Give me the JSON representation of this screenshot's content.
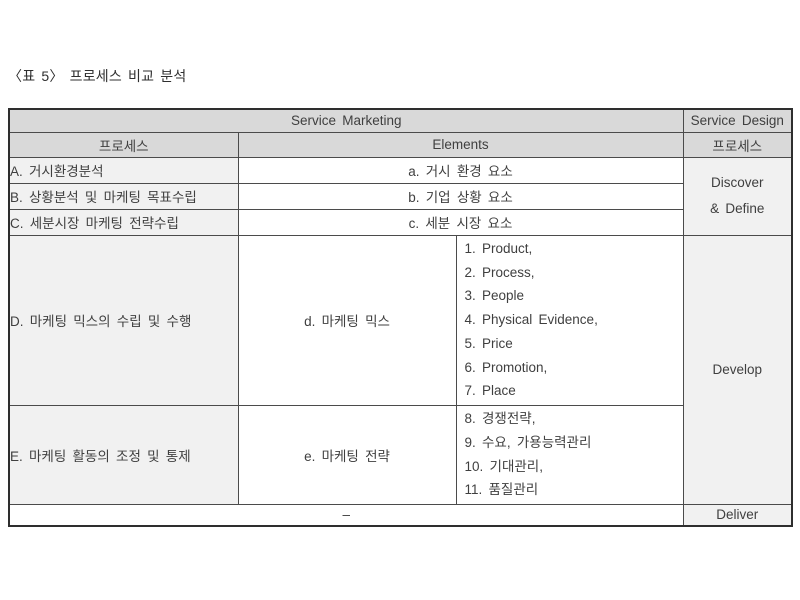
{
  "page": {
    "caption": "〈표 5〉 프로세스 비교 분석"
  },
  "table": {
    "header": {
      "service_marketing": "Service Marketing",
      "service_design": "Service Design",
      "process_left": "프로세스",
      "elements": "Elements",
      "process_right": "프로세스"
    },
    "rows": {
      "a": {
        "process": "A. 거시환경분석",
        "element": "a. 거시 환경 요소"
      },
      "b": {
        "process": "B. 상황분석 및 마케팅 목표수립",
        "element": "b. 기업 상황 요소"
      },
      "c": {
        "process": "C. 세분시장 마케팅 전략수립",
        "element": "c. 세분 시장 요소"
      },
      "d": {
        "process": "D. 마케팅 믹스의 수립 및 수행",
        "element": "d. 마케팅 믹스",
        "sub_items": [
          "1. Product,",
          "2. Process,",
          "3. People",
          "4. Physical Evidence,",
          "5. Price",
          "6. Promotion,",
          "7. Place"
        ]
      },
      "e": {
        "process": "E. 마케팅 활동의 조정 및 통제",
        "element": "e. 마케팅 전략",
        "sub_items": [
          "8. 경쟁전략,",
          "9. 수요, 가용능력관리",
          "10. 기대관리,",
          "11. 품질관리"
        ]
      },
      "bottom": {
        "process": "–"
      }
    },
    "design_phases": {
      "discover_line1": "Discover",
      "discover_line2": "& Define",
      "develop": "Develop",
      "deliver": "Deliver"
    },
    "colors": {
      "header_bg": "#d9d9d9",
      "shaded_cell_bg": "#f1f1f1",
      "border": "#4b4b4b",
      "text": "#3f3f3f"
    }
  }
}
